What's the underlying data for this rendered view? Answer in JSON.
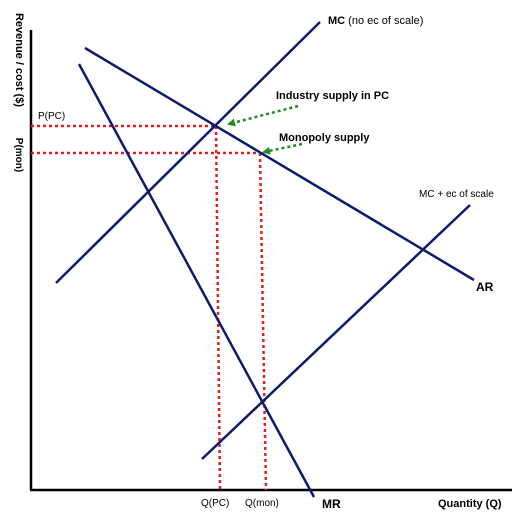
{
  "diagram": {
    "y_axis_label": "Revenue / cost ($)",
    "x_axis_label": "Quantity (Q)",
    "curves": {
      "mc_no_scale": "MC",
      "mc_no_scale_note": "(no ec of scale)",
      "mc_scale": "MC + ec of scale",
      "ar": "AR",
      "mr": "MR"
    },
    "price_labels": {
      "p_pc": "P(PC)",
      "p_mon": "P(mon)"
    },
    "quantity_labels": {
      "q_pc": "Q(PC)",
      "q_mon": "Q(mon)"
    },
    "annotations": {
      "industry_supply": "Industry supply in PC",
      "monopoly_supply": "Monopoly supply"
    },
    "colors": {
      "curve": "#0d1a6e",
      "axis": "#000000",
      "dotted_guide": "#e0201b",
      "arrow": "#1f8a1f"
    }
  }
}
